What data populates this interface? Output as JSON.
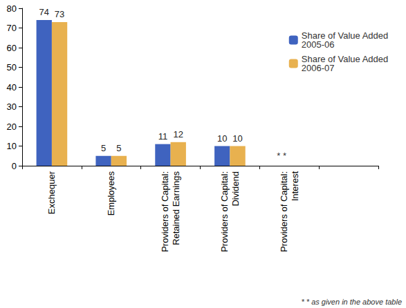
{
  "chart_data": {
    "type": "bar",
    "categories": [
      "Exchequer",
      "Employees",
      "Providers of Capital: Retained Earnings",
      "Providers of Capital: Dividend",
      "Providers of Capital: Interest",
      null
    ],
    "series": [
      {
        "name": "Share of Value Added 2005-06",
        "color": "#3f63bf",
        "values": [
          74,
          5,
          11,
          10,
          null,
          null
        ]
      },
      {
        "name": "Share of Value Added 2006-07",
        "color": "#e8b14f",
        "values": [
          73,
          5,
          12,
          10,
          null,
          null
        ]
      }
    ],
    "ylim": [
      0,
      80
    ],
    "yticks": [
      0,
      10,
      20,
      30,
      40,
      50,
      60,
      70,
      80
    ],
    "grid": false,
    "legend": "top-right",
    "data_labels": true,
    "annotations": [
      {
        "text": "* *",
        "category": "Providers of Capital: Interest",
        "y": 5
      }
    ],
    "footnote": "* * as given in the above table"
  }
}
